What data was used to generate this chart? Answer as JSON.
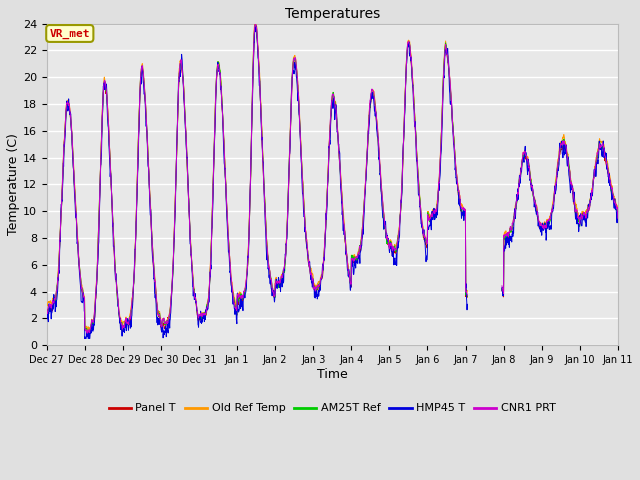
{
  "title": "Temperatures",
  "xlabel": "Time",
  "ylabel": "Temperature (C)",
  "ylim": [
    0,
    24
  ],
  "background_color": "#e8e8e8",
  "plot_bg_color": "#e8e8e8",
  "series_colors": {
    "Panel T": "#cc0000",
    "Old Ref Temp": "#ff9900",
    "AM25T Ref": "#00cc00",
    "HMP45 T": "#0000dd",
    "CNR1 PRT": "#cc00cc"
  },
  "legend_entries": [
    "Panel T",
    "Old Ref Temp",
    "AM25T Ref",
    "HMP45 T",
    "CNR1 PRT"
  ],
  "annotation_text": "VR_met",
  "annotation_color": "#cc0000",
  "annotation_bg": "#ffffcc",
  "annotation_border": "#999900",
  "tick_labels": [
    "Dec 27",
    "Dec 28",
    "Dec 29",
    "Dec 30",
    "Dec 31",
    "Jan 1",
    "Jan 2",
    "Jan 3",
    "Jan 4",
    "Jan 5",
    "Jan 6",
    "Jan 7",
    "Jan 8",
    "Jan 9",
    "Jan 10",
    "Jan 11"
  ],
  "yticks": [
    0,
    2,
    4,
    6,
    8,
    10,
    12,
    14,
    16,
    18,
    20,
    22,
    24
  ],
  "n_days": 15,
  "pts_per_day": 144
}
